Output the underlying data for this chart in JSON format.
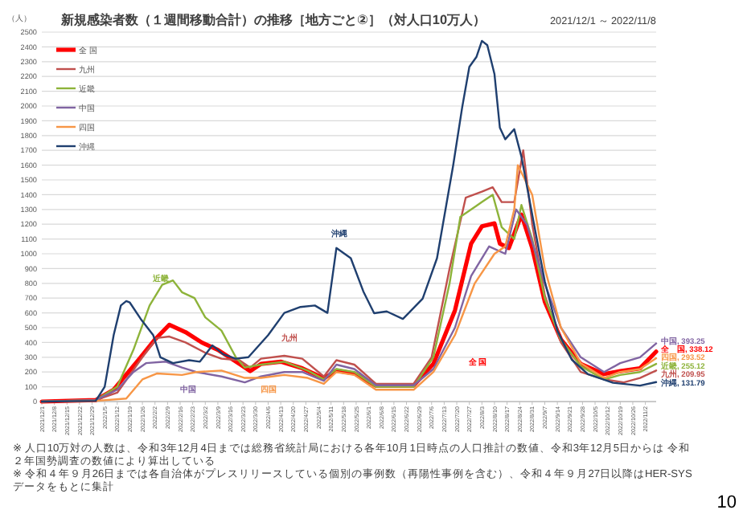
{
  "chart_data": {
    "type": "line",
    "title": "新規感染者数（１週間移動合計）の推移［地方ごと②］（対人口10万人）",
    "subtitle": "2021/12/1 ～ 2022/11/8",
    "ylabel": "（人）",
    "xlim": [
      "2021-12-01",
      "2022-11-08"
    ],
    "xticks": [
      {
        "value": "2021-12-01",
        "label": "2021/12/1"
      },
      {
        "value": "2021-12-08",
        "label": "2021/12/8"
      },
      {
        "value": "2021-12-15",
        "label": "2021/12/15"
      },
      {
        "value": "2021-12-22",
        "label": "2021/12/22"
      },
      {
        "value": "2021-12-29",
        "label": "2021/12/29"
      },
      {
        "value": "2022-01-05",
        "label": "2022/1/5"
      },
      {
        "value": "2022-01-12",
        "label": "2022/1/12"
      },
      {
        "value": "2022-01-19",
        "label": "2022/1/19"
      },
      {
        "value": "2022-01-26",
        "label": "2022/1/26"
      },
      {
        "value": "2022-02-02",
        "label": "2022/2/2"
      },
      {
        "value": "2022-02-09",
        "label": "2022/2/9"
      },
      {
        "value": "2022-02-16",
        "label": "2022/2/16"
      },
      {
        "value": "2022-02-23",
        "label": "2022/2/23"
      },
      {
        "value": "2022-03-02",
        "label": "2022/3/2"
      },
      {
        "value": "2022-03-09",
        "label": "2022/3/9"
      },
      {
        "value": "2022-03-16",
        "label": "2022/3/16"
      },
      {
        "value": "2022-03-23",
        "label": "2022/3/23"
      },
      {
        "value": "2022-03-30",
        "label": "2022/3/30"
      },
      {
        "value": "2022-04-06",
        "label": "2022/4/6"
      },
      {
        "value": "2022-04-13",
        "label": "2022/4/13"
      },
      {
        "value": "2022-04-20",
        "label": "2022/4/20"
      },
      {
        "value": "2022-04-27",
        "label": "2022/4/27"
      },
      {
        "value": "2022-05-04",
        "label": "2022/5/4"
      },
      {
        "value": "2022-05-11",
        "label": "2022/5/11"
      },
      {
        "value": "2022-05-18",
        "label": "2022/5/18"
      },
      {
        "value": "2022-05-25",
        "label": "2022/5/25"
      },
      {
        "value": "2022-06-01",
        "label": "2022/6/1"
      },
      {
        "value": "2022-06-08",
        "label": "2022/6/8"
      },
      {
        "value": "2022-06-15",
        "label": "2022/6/15"
      },
      {
        "value": "2022-06-22",
        "label": "2022/6/22"
      },
      {
        "value": "2022-06-29",
        "label": "2022/6/29"
      },
      {
        "value": "2022-07-06",
        "label": "2022/7/6"
      },
      {
        "value": "2022-07-13",
        "label": "2022/7/13"
      },
      {
        "value": "2022-07-20",
        "label": "2022/7/20"
      },
      {
        "value": "2022-07-27",
        "label": "2022/7/27"
      },
      {
        "value": "2022-08-03",
        "label": "2022/8/3"
      },
      {
        "value": "2022-08-10",
        "label": "2022/8/10"
      },
      {
        "value": "2022-08-17",
        "label": "2022/8/17"
      },
      {
        "value": "2022-08-24",
        "label": "2022/8/24"
      },
      {
        "value": "2022-08-31",
        "label": "2022/8/31"
      },
      {
        "value": "2022-09-07",
        "label": "2022/9/7"
      },
      {
        "value": "2022-09-14",
        "label": "2022/9/14"
      },
      {
        "value": "2022-09-21",
        "label": "2022/9/21"
      },
      {
        "value": "2022-09-28",
        "label": "2022/9/28"
      },
      {
        "value": "2022-10-05",
        "label": "2022/10/5"
      },
      {
        "value": "2022-10-12",
        "label": "2022/10/12"
      },
      {
        "value": "2022-10-19",
        "label": "2022/10/19"
      },
      {
        "value": "2022-10-26",
        "label": "2022/10/26"
      },
      {
        "value": "2022-11-02",
        "label": "2022/11/2"
      }
    ],
    "ylim": [
      0,
      2500
    ],
    "yticks": [
      0,
      100,
      200,
      300,
      400,
      500,
      600,
      700,
      800,
      900,
      1000,
      1100,
      1200,
      1300,
      1400,
      1500,
      1600,
      1700,
      1800,
      1900,
      2000,
      2100,
      2200,
      2300,
      2400,
      2500
    ],
    "grid": "y",
    "legend": "top left",
    "series": [
      {
        "name": "全 国",
        "color": "#ff0000",
        "x": [
          "2021-12-01",
          "2021-12-31",
          "2022-01-10",
          "2022-01-24",
          "2022-02-02",
          "2022-02-10",
          "2022-02-19",
          "2022-02-28",
          "2022-03-09",
          "2022-03-21",
          "2022-03-27",
          "2022-04-02",
          "2022-04-13",
          "2022-04-25",
          "2022-05-07",
          "2022-05-14",
          "2022-05-24",
          "2022-06-05",
          "2022-06-26",
          "2022-07-07",
          "2022-07-19",
          "2022-07-28",
          "2022-08-03",
          "2022-08-10",
          "2022-08-13",
          "2022-08-18",
          "2022-08-25",
          "2022-08-31",
          "2022-09-07",
          "2022-09-16",
          "2022-09-27",
          "2022-10-10",
          "2022-10-19",
          "2022-10-30",
          "2022-11-08"
        ],
        "values": [
          0,
          10,
          80,
          285,
          420,
          520,
          470,
          400,
          350,
          255,
          206,
          255,
          270,
          225,
          157,
          210,
          190,
          108,
          108,
          255,
          617,
          1069,
          1186,
          1206,
          1069,
          1039,
          1265,
          1039,
          676,
          421,
          255,
          186,
          206,
          225,
          338.12
        ],
        "value_labels": [
          null,
          null,
          null,
          null,
          null,
          null,
          null,
          null,
          null,
          null,
          null,
          null,
          null,
          null,
          null,
          null,
          null,
          null,
          null,
          null,
          null,
          null,
          null,
          null,
          null,
          null,
          null,
          null,
          null,
          null,
          null,
          null,
          null,
          null,
          "全　国, 338.12"
        ]
      },
      {
        "name": "九州",
        "color": "#c0504d",
        "x": [
          "2021-12-01",
          "2021-12-31",
          "2022-01-12",
          "2022-01-26",
          "2022-02-03",
          "2022-02-10",
          "2022-02-19",
          "2022-03-02",
          "2022-03-11",
          "2022-03-21",
          "2022-03-27",
          "2022-04-02",
          "2022-04-15",
          "2022-04-25",
          "2022-05-07",
          "2022-05-14",
          "2022-05-24",
          "2022-06-05",
          "2022-06-26",
          "2022-07-06",
          "2022-07-16",
          "2022-07-25",
          "2022-08-03",
          "2022-08-09",
          "2022-08-14",
          "2022-08-21",
          "2022-08-26",
          "2022-08-31",
          "2022-09-07",
          "2022-09-16",
          "2022-09-27",
          "2022-10-10",
          "2022-10-21",
          "2022-10-30",
          "2022-11-08"
        ],
        "values": [
          0,
          10,
          60,
          300,
          430,
          440,
          400,
          330,
          290,
          280,
          230,
          290,
          310,
          290,
          170,
          280,
          250,
          120,
          120,
          300,
          900,
          1380,
          1420,
          1450,
          1350,
          1350,
          1700,
          1200,
          720,
          400,
          200,
          150,
          130,
          160,
          209.95
        ],
        "value_labels": [
          null,
          null,
          null,
          null,
          null,
          null,
          null,
          null,
          null,
          null,
          null,
          null,
          null,
          null,
          null,
          null,
          null,
          null,
          null,
          null,
          null,
          null,
          null,
          null,
          null,
          null,
          null,
          null,
          null,
          null,
          null,
          null,
          null,
          null,
          "九州, 209.95"
        ]
      },
      {
        "name": "近畿",
        "color": "#8db33a",
        "x": [
          "2021-12-01",
          "2021-12-31",
          "2022-01-12",
          "2022-01-21",
          "2022-01-30",
          "2022-02-06",
          "2022-02-12",
          "2022-02-17",
          "2022-02-24",
          "2022-03-02",
          "2022-03-11",
          "2022-03-19",
          "2022-03-24",
          "2022-04-02",
          "2022-04-15",
          "2022-04-28",
          "2022-05-07",
          "2022-05-14",
          "2022-05-24",
          "2022-06-05",
          "2022-06-26",
          "2022-07-07",
          "2022-07-16",
          "2022-07-22",
          "2022-08-03",
          "2022-08-09",
          "2022-08-14",
          "2022-08-21",
          "2022-08-25",
          "2022-08-31",
          "2022-09-07",
          "2022-09-16",
          "2022-09-27",
          "2022-10-10",
          "2022-10-19",
          "2022-10-30",
          "2022-11-08"
        ],
        "values": [
          0,
          10,
          100,
          350,
          650,
          790,
          820,
          740,
          700,
          570,
          480,
          300,
          230,
          250,
          270,
          210,
          150,
          220,
          200,
          100,
          100,
          300,
          800,
          1250,
          1350,
          1400,
          1180,
          1100,
          1330,
          1100,
          700,
          420,
          240,
          150,
          180,
          200,
          255.12
        ],
        "value_labels": [
          null,
          null,
          null,
          null,
          null,
          null,
          null,
          null,
          null,
          null,
          null,
          null,
          null,
          null,
          null,
          null,
          null,
          null,
          null,
          null,
          null,
          null,
          null,
          null,
          null,
          null,
          null,
          null,
          null,
          null,
          null,
          null,
          null,
          null,
          null,
          null,
          "近畿, 255.12"
        ]
      },
      {
        "name": "中国",
        "color": "#8064a2",
        "x": [
          "2021-12-01",
          "2021-12-31",
          "2022-01-12",
          "2022-01-21",
          "2022-01-28",
          "2022-02-08",
          "2022-02-17",
          "2022-02-25",
          "2022-03-11",
          "2022-03-24",
          "2022-04-02",
          "2022-04-15",
          "2022-04-25",
          "2022-05-07",
          "2022-05-14",
          "2022-05-24",
          "2022-06-05",
          "2022-06-26",
          "2022-07-07",
          "2022-07-19",
          "2022-07-28",
          "2022-08-07",
          "2022-08-16",
          "2022-08-22",
          "2022-08-28",
          "2022-09-07",
          "2022-09-16",
          "2022-09-27",
          "2022-10-10",
          "2022-10-19",
          "2022-10-30",
          "2022-11-08"
        ],
        "values": [
          0,
          10,
          80,
          200,
          260,
          270,
          230,
          200,
          170,
          130,
          170,
          200,
          200,
          140,
          250,
          220,
          110,
          110,
          220,
          500,
          850,
          1050,
          1000,
          1300,
          1200,
          800,
          500,
          300,
          200,
          260,
          300,
          393.25
        ],
        "value_labels": [
          null,
          null,
          null,
          null,
          null,
          null,
          null,
          null,
          null,
          null,
          null,
          null,
          null,
          null,
          null,
          null,
          null,
          null,
          null,
          null,
          null,
          null,
          null,
          null,
          null,
          null,
          null,
          null,
          null,
          null,
          null,
          "中国, 393.25"
        ]
      },
      {
        "name": "四国",
        "color": "#f79646",
        "x": [
          "2021-12-01",
          "2021-12-31",
          "2022-01-17",
          "2022-01-26",
          "2022-02-03",
          "2022-02-17",
          "2022-02-25",
          "2022-03-11",
          "2022-03-24",
          "2022-04-02",
          "2022-04-15",
          "2022-04-28",
          "2022-05-07",
          "2022-05-14",
          "2022-05-24",
          "2022-06-05",
          "2022-06-26",
          "2022-07-07",
          "2022-07-19",
          "2022-07-30",
          "2022-08-10",
          "2022-08-16",
          "2022-08-21",
          "2022-08-23",
          "2022-08-31",
          "2022-09-07",
          "2022-09-16",
          "2022-09-27",
          "2022-10-10",
          "2022-10-19",
          "2022-10-30",
          "2022-11-08"
        ],
        "values": [
          0,
          5,
          20,
          150,
          190,
          180,
          200,
          210,
          160,
          160,
          180,
          160,
          120,
          200,
          180,
          80,
          80,
          200,
          450,
          800,
          1000,
          1050,
          1300,
          1600,
          1400,
          900,
          500,
          260,
          160,
          200,
          220,
          293.52
        ],
        "value_labels": [
          null,
          null,
          null,
          null,
          null,
          null,
          null,
          null,
          null,
          null,
          null,
          null,
          null,
          null,
          null,
          null,
          null,
          null,
          null,
          null,
          null,
          null,
          null,
          null,
          null,
          null,
          null,
          null,
          null,
          null,
          null,
          "四国, 293.52"
        ]
      },
      {
        "name": "沖縄",
        "color": "#1f3f6f",
        "x": [
          "2021-12-01",
          "2021-12-31",
          "2022-01-05",
          "2022-01-10",
          "2022-01-14",
          "2022-01-17",
          "2022-01-19",
          "2022-01-25",
          "2022-02-01",
          "2022-02-05",
          "2022-02-12",
          "2022-02-21",
          "2022-02-27",
          "2022-03-06",
          "2022-03-12",
          "2022-03-19",
          "2022-03-26",
          "2022-04-06",
          "2022-04-15",
          "2022-04-24",
          "2022-05-02",
          "2022-05-09",
          "2022-05-14",
          "2022-05-22",
          "2022-05-29",
          "2022-06-04",
          "2022-06-11",
          "2022-06-20",
          "2022-07-01",
          "2022-07-09",
          "2022-07-18",
          "2022-07-23",
          "2022-07-27",
          "2022-07-31",
          "2022-08-03",
          "2022-08-06",
          "2022-08-10",
          "2022-08-13",
          "2022-08-16",
          "2022-08-21",
          "2022-08-25",
          "2022-08-31",
          "2022-09-07",
          "2022-09-14",
          "2022-09-22",
          "2022-10-01",
          "2022-10-15",
          "2022-10-30",
          "2022-11-08"
        ],
        "values": [
          0,
          5,
          100,
          450,
          650,
          680,
          670,
          560,
          450,
          300,
          260,
          280,
          270,
          380,
          320,
          290,
          300,
          450,
          600,
          640,
          650,
          600,
          1039,
          970,
          745,
          598,
          610,
          559,
          696,
          970,
          1598,
          1990,
          2265,
          2333,
          2441,
          2412,
          2216,
          1853,
          1775,
          1843,
          1657,
          1265,
          814,
          480,
          284,
          186,
          127,
          108,
          131.79
        ],
        "value_labels": [
          null,
          null,
          null,
          null,
          null,
          null,
          null,
          null,
          null,
          null,
          null,
          null,
          null,
          null,
          null,
          null,
          null,
          null,
          null,
          null,
          null,
          null,
          null,
          null,
          null,
          null,
          null,
          null,
          null,
          null,
          null,
          null,
          null,
          null,
          null,
          null,
          null,
          null,
          null,
          null,
          null,
          null,
          null,
          null,
          null,
          null,
          null,
          null,
          "沖縄, 131.79"
        ]
      }
    ],
    "annotations": [
      "近畿",
      "九州",
      "中国",
      "四国",
      "沖縄",
      "全 国",
      "※ 人口10万対の人数は、令和3年12月4日までは総務省統計局における各年10月1日時点の人口推計の数値、令和3年12月5日からは 令和２年国勢調査の数値により算出している",
      "※ 令和４年９月26日までは各自治体がプレスリリースしている個別の事例数（再陽性事例を含む）、令和４年９月27日以降はHER-SYSデータをもとに集計",
      "10"
    ]
  }
}
